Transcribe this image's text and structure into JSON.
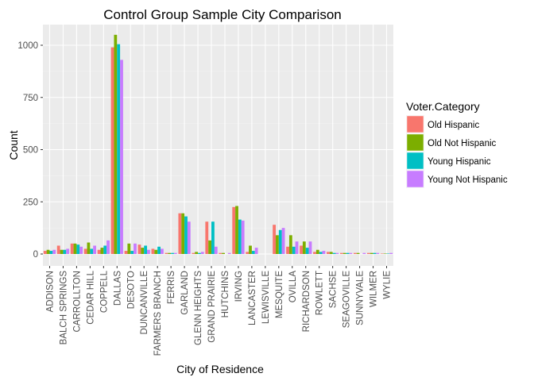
{
  "chart_data": {
    "type": "bar",
    "title": "Control Group Sample City Comparison",
    "xlabel": "City of Residence",
    "ylabel": "Count",
    "ylim": [
      0,
      1080
    ],
    "yticks": [
      0,
      250,
      500,
      750,
      1000
    ],
    "ytick_labels": [
      "0",
      "250",
      "500",
      "750",
      "1000"
    ],
    "grid": true,
    "legend_position": "right",
    "legend_title": "Voter.Category",
    "categories": [
      "ADDISON",
      "BALCH SPRINGS",
      "CARROLLTON",
      "CEDAR HILL",
      "COPPELL",
      "DALLAS",
      "DESOTO",
      "DUNCANVILLE",
      "FARMERS BRANCH",
      "FERRIS",
      "GARLAND",
      "GLENN HEIGHTS",
      "GRAND PRAIRIE",
      "HUTCHINS",
      "IRVING",
      "LANCASTER",
      "LEWISVILLE",
      "MESQUITE",
      "OVILLA",
      "RICHARDSON",
      "ROWLETT",
      "SACHSE",
      "SEAGOVILLE",
      "SUNNYVALE",
      "WILMER",
      "WYLIE"
    ],
    "series": [
      {
        "name": "Old Hispanic",
        "color": "#F8766D",
        "values": [
          15,
          40,
          50,
          25,
          20,
          990,
          15,
          45,
          25,
          5,
          195,
          5,
          155,
          5,
          225,
          10,
          0,
          140,
          35,
          40,
          10,
          10,
          5,
          5,
          5,
          2
        ]
      },
      {
        "name": "Old Not Hispanic",
        "color": "#7CAE00",
        "values": [
          20,
          20,
          50,
          55,
          30,
          1050,
          50,
          30,
          20,
          5,
          195,
          10,
          65,
          5,
          230,
          40,
          0,
          90,
          90,
          60,
          20,
          10,
          5,
          5,
          5,
          2
        ]
      },
      {
        "name": "Young Hispanic",
        "color": "#00BFC4",
        "values": [
          15,
          20,
          45,
          25,
          40,
          1005,
          15,
          40,
          35,
          5,
          180,
          5,
          155,
          0,
          165,
          15,
          0,
          115,
          35,
          30,
          10,
          5,
          5,
          0,
          5,
          2
        ]
      },
      {
        "name": "Young Not Hispanic",
        "color": "#C77CFF",
        "values": [
          20,
          25,
          35,
          40,
          65,
          930,
          50,
          20,
          25,
          5,
          155,
          10,
          35,
          5,
          160,
          30,
          0,
          125,
          60,
          60,
          15,
          5,
          5,
          5,
          5,
          5
        ]
      }
    ]
  }
}
